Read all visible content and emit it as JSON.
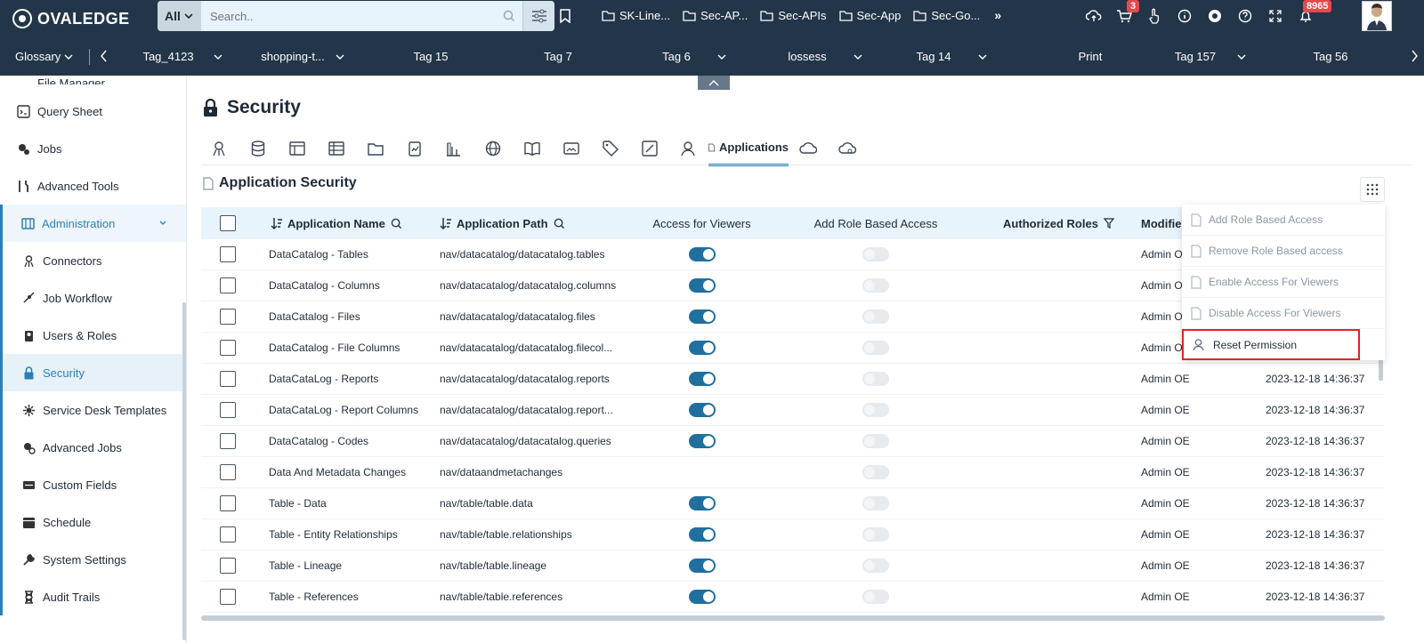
{
  "app": {
    "brand": "OVALEDGE"
  },
  "search": {
    "scope": "All",
    "placeholder": "Search.."
  },
  "folder_tabs": [
    "SK-Line...",
    "Sec-AP...",
    "Sec-APIs",
    "Sec-App",
    "Sec-Go..."
  ],
  "header": {
    "cart_count": "3",
    "notif_count": "8965"
  },
  "tagbar": {
    "glossary": "Glossary",
    "tags": [
      "Tag_4123",
      "shopping-t...",
      "Tag 15",
      "Tag 7",
      "Tag 6",
      "lossess",
      "Tag 14",
      "Print",
      "Tag 157",
      "Tag 56"
    ]
  },
  "sidebar": {
    "items": [
      {
        "label": "File Manager"
      },
      {
        "label": "Query Sheet"
      },
      {
        "label": "Jobs"
      },
      {
        "label": "Advanced Tools"
      },
      {
        "label": "Administration"
      },
      {
        "label": "Connectors"
      },
      {
        "label": "Job Workflow"
      },
      {
        "label": "Users & Roles"
      },
      {
        "label": "Security"
      },
      {
        "label": "Service Desk Templates"
      },
      {
        "label": "Advanced Jobs"
      },
      {
        "label": "Custom Fields"
      },
      {
        "label": "Schedule"
      },
      {
        "label": "System Settings"
      },
      {
        "label": "Audit Trails"
      }
    ]
  },
  "main": {
    "title": "Security",
    "active_tab": "Applications",
    "section_title": "Application Security"
  },
  "table": {
    "headers": {
      "name": "Application Name",
      "path": "Application Path",
      "viewers": "Access for Viewers",
      "role": "Add Role Based Access",
      "auth": "Authorized Roles",
      "modified": "Modified"
    },
    "rows": [
      {
        "name": "DataCatalog - Tables",
        "path": "nav/datacatalog/datacatalog.tables",
        "viewers": true,
        "mod": "Admin OE",
        "date": ""
      },
      {
        "name": "DataCatalog - Columns",
        "path": "nav/datacatalog/datacatalog.columns",
        "viewers": true,
        "mod": "Admin OE",
        "date": ""
      },
      {
        "name": "DataCatalog - Files",
        "path": "nav/datacatalog/datacatalog.files",
        "viewers": true,
        "mod": "Admin OE",
        "date": ""
      },
      {
        "name": "DataCatalog - File Columns",
        "path": "nav/datacatalog/datacatalog.filecol...",
        "viewers": true,
        "mod": "Admin OE",
        "date": ""
      },
      {
        "name": "DataCataLog - Reports",
        "path": "nav/datacatalog/datacatalog.reports",
        "viewers": true,
        "mod": "Admin OE",
        "date": "2023-12-18 14:36:37"
      },
      {
        "name": "DataCataLog - Report Columns",
        "path": "nav/datacatalog/datacatalog.report...",
        "viewers": true,
        "mod": "Admin OE",
        "date": "2023-12-18 14:36:37"
      },
      {
        "name": "DataCatalog - Codes",
        "path": "nav/datacatalog/datacatalog.queries",
        "viewers": true,
        "mod": "Admin OE",
        "date": "2023-12-18 14:36:37"
      },
      {
        "name": "Data And Metadata Changes",
        "path": "nav/dataandmetachanges",
        "viewers": null,
        "mod": "Admin OE",
        "date": "2023-12-18 14:36:37"
      },
      {
        "name": "Table - Data",
        "path": "nav/table/table.data",
        "viewers": true,
        "mod": "Admin OE",
        "date": "2023-12-18 14:36:37"
      },
      {
        "name": "Table - Entity Relationships",
        "path": "nav/table/table.relationships",
        "viewers": true,
        "mod": "Admin OE",
        "date": "2023-12-18 14:36:37"
      },
      {
        "name": "Table - Lineage",
        "path": "nav/table/table.lineage",
        "viewers": true,
        "mod": "Admin OE",
        "date": "2023-12-18 14:36:37"
      },
      {
        "name": "Table - References",
        "path": "nav/table/table.references",
        "viewers": true,
        "mod": "Admin OE",
        "date": "2023-12-18 14:36:37"
      }
    ]
  },
  "menu": {
    "items": [
      {
        "label": "Add Role Based Access"
      },
      {
        "label": "Remove Role Based access"
      },
      {
        "label": "Enable Access For Viewers"
      },
      {
        "label": "Disable Access For Viewers"
      },
      {
        "label": "Reset Permission"
      }
    ]
  },
  "colors": {
    "topbar": "#233548",
    "accent": "#2b7fb8",
    "toggle_on": "#1f6f9f",
    "highlight": "#e02424"
  }
}
